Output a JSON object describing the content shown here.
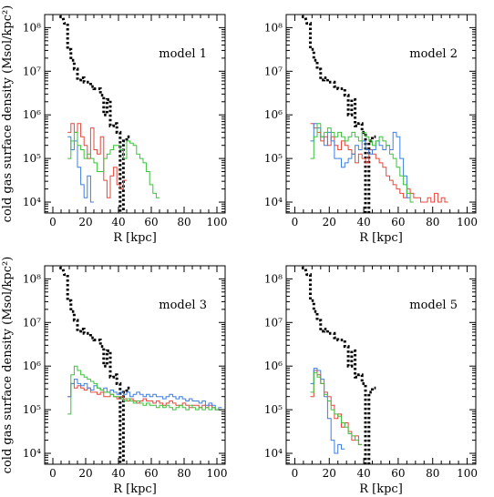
{
  "chart_data": [
    {
      "type": "line",
      "title": "model 1",
      "xlabel": "R [kpc]",
      "ylabel": "cold gas surface density (Msol/kpc²)",
      "xlim": [
        -5,
        105
      ],
      "ylim_log10": [
        3.75,
        8.3
      ],
      "yscale": "log",
      "x_ticks": [
        0,
        20,
        40,
        60,
        80,
        100
      ],
      "y_ticks": [
        "10⁴",
        "10⁵",
        "10⁶",
        "10⁷",
        "10⁸"
      ],
      "grid": false,
      "series": [
        {
          "color": "#000000",
          "style": "dotted",
          "x": [
            5,
            8,
            10,
            12,
            14,
            16,
            18,
            20,
            22,
            24,
            26,
            28,
            30,
            32,
            34,
            36,
            38,
            40,
            42,
            44,
            46
          ],
          "log10y": [
            8.25,
            8.1,
            7.5,
            7.25,
            7.05,
            6.8,
            6.85,
            6.75,
            6.75,
            6.65,
            6.6,
            6.6,
            6.45,
            6.0,
            6.35,
            5.75,
            5.8,
            5.6,
            3.6,
            5.4,
            5.5
          ]
        },
        {
          "color": "#e8453c",
          "style": "solid",
          "x": [
            10,
            12,
            14,
            16,
            18,
            20,
            22,
            24,
            26,
            28,
            30,
            32,
            34,
            36,
            38,
            40,
            42,
            44
          ],
          "log10y": [
            5.6,
            5.8,
            5.6,
            5.8,
            5.5,
            5.3,
            5.0,
            5.7,
            5.2,
            5.1,
            5.5,
            4.5,
            4.1,
            4.6,
            4.8,
            4.4,
            4.3,
            4.5
          ]
        },
        {
          "color": "#3d7fe0",
          "style": "solid",
          "x": [
            10,
            12,
            14,
            16,
            18,
            20,
            22,
            24
          ],
          "log10y": [
            5.5,
            5.2,
            5.4,
            4.8,
            4.4,
            4.1,
            4.6,
            4.0
          ]
        },
        {
          "color": "#3cc23c",
          "style": "solid",
          "x": [
            10,
            12,
            14,
            16,
            18,
            20,
            22,
            24,
            26,
            28,
            30,
            32,
            34,
            36,
            38,
            40,
            42,
            44,
            46,
            48,
            50,
            52,
            54,
            56,
            58,
            60,
            62,
            64
          ],
          "log10y": [
            5.0,
            5.4,
            5.6,
            5.3,
            5.2,
            5.0,
            5.1,
            5.0,
            4.9,
            4.7,
            4.7,
            5.0,
            5.1,
            5.2,
            5.3,
            5.3,
            5.2,
            5.0,
            5.4,
            5.35,
            5.3,
            5.1,
            5.0,
            4.9,
            4.7,
            4.4,
            4.2,
            4.1
          ]
        }
      ]
    },
    {
      "type": "line",
      "title": "model 2",
      "xlabel": "R [kpc]",
      "ylabel": "",
      "xlim": [
        -5,
        105
      ],
      "ylim_log10": [
        3.75,
        8.3
      ],
      "yscale": "log",
      "x_ticks": [
        0,
        20,
        40,
        60,
        80,
        100
      ],
      "y_ticks": [
        "10⁴",
        "10⁵",
        "10⁶",
        "10⁷",
        "10⁸"
      ],
      "grid": false,
      "series": [
        {
          "color": "#000000",
          "style": "dotted",
          "x": [
            5,
            8,
            10,
            12,
            14,
            16,
            18,
            20,
            22,
            24,
            26,
            28,
            30,
            32,
            34,
            36,
            38,
            40,
            42,
            44,
            46
          ],
          "log10y": [
            8.25,
            8.1,
            7.5,
            7.25,
            7.05,
            6.8,
            6.85,
            6.75,
            6.75,
            6.65,
            6.6,
            6.6,
            6.45,
            6.0,
            6.35,
            5.75,
            5.8,
            5.6,
            3.6,
            5.4,
            5.5
          ]
        },
        {
          "color": "#e8453c",
          "style": "solid",
          "x": [
            10,
            12,
            14,
            16,
            18,
            20,
            22,
            24,
            26,
            28,
            30,
            32,
            34,
            36,
            38,
            40,
            42,
            44,
            46,
            48,
            50,
            52,
            54,
            56,
            58,
            60,
            62,
            64,
            66,
            68,
            70,
            72,
            74,
            76,
            78,
            80,
            82,
            84,
            86,
            88
          ],
          "log10y": [
            5.8,
            5.7,
            5.6,
            5.4,
            5.5,
            5.3,
            5.5,
            5.3,
            5.2,
            5.4,
            5.3,
            5.2,
            5.1,
            4.9,
            5.1,
            5.0,
            4.9,
            5.2,
            5.1,
            5.0,
            4.9,
            4.8,
            4.6,
            4.5,
            4.4,
            4.3,
            4.2,
            4.1,
            4.3,
            4.2,
            4.1,
            4.1,
            4.0,
            4.0,
            4.1,
            4.0,
            4.2,
            4.0,
            4.1,
            4.0
          ]
        },
        {
          "color": "#3d7fe0",
          "style": "solid",
          "x": [
            10,
            12,
            14,
            16,
            18,
            20,
            22,
            24,
            26,
            28,
            30,
            32,
            34,
            36,
            38,
            40,
            42,
            44,
            46,
            48,
            50,
            52,
            54,
            56,
            58,
            60,
            62,
            64,
            66
          ],
          "log10y": [
            5.4,
            5.8,
            5.7,
            5.5,
            5.3,
            5.6,
            5.4,
            5.0,
            5.0,
            4.8,
            4.9,
            5.0,
            5.1,
            5.3,
            5.2,
            5.4,
            5.2,
            5.1,
            5.2,
            5.4,
            5.3,
            5.2,
            5.3,
            5.2,
            5.6,
            5.5,
            5.0,
            4.6,
            4.1
          ]
        },
        {
          "color": "#3cc23c",
          "style": "solid",
          "x": [
            10,
            12,
            14,
            16,
            18,
            20,
            22,
            24,
            26,
            28,
            30,
            32,
            34,
            36,
            38,
            40,
            42,
            44,
            46,
            48,
            50,
            52,
            54,
            56,
            58,
            60,
            62,
            64,
            66,
            68
          ],
          "log10y": [
            5.0,
            5.5,
            5.8,
            5.5,
            5.6,
            5.7,
            5.6,
            5.5,
            5.6,
            5.5,
            5.4,
            5.5,
            5.6,
            5.5,
            5.4,
            5.6,
            5.5,
            5.4,
            5.3,
            5.4,
            5.5,
            5.4,
            5.3,
            5.1,
            5.0,
            4.8,
            4.6,
            4.4,
            4.2,
            4.0
          ]
        }
      ]
    },
    {
      "type": "line",
      "title": "model 3",
      "xlabel": "R [kpc]",
      "ylabel": "cold gas surface density (Msol/kpc²)",
      "xlim": [
        -5,
        105
      ],
      "ylim_log10": [
        3.75,
        8.3
      ],
      "yscale": "log",
      "x_ticks": [
        0,
        20,
        40,
        60,
        80,
        100
      ],
      "y_ticks": [
        "10⁴",
        "10⁵",
        "10⁶",
        "10⁷",
        "10⁸"
      ],
      "grid": false,
      "series": [
        {
          "color": "#000000",
          "style": "dotted",
          "x": [
            5,
            8,
            10,
            12,
            14,
            16,
            18,
            20,
            22,
            24,
            26,
            28,
            30,
            32,
            34,
            36,
            38,
            40,
            42,
            44,
            46
          ],
          "log10y": [
            8.25,
            8.1,
            7.5,
            7.25,
            7.05,
            6.8,
            6.85,
            6.75,
            6.75,
            6.65,
            6.6,
            6.6,
            6.45,
            6.0,
            6.35,
            5.75,
            5.8,
            5.6,
            3.6,
            5.4,
            5.5
          ]
        },
        {
          "color": "#e8453c",
          "style": "solid",
          "x": [
            10,
            12,
            14,
            16,
            18,
            20,
            22,
            24,
            26,
            28,
            30,
            32,
            34,
            36,
            38,
            40,
            42,
            44,
            46,
            48,
            50,
            52,
            54,
            56,
            58,
            60,
            62,
            64,
            66,
            68,
            70,
            72,
            74,
            76,
            78,
            80,
            82,
            84,
            86,
            88,
            90,
            92,
            94,
            96,
            98,
            100,
            102
          ],
          "log10y": [
            5.3,
            5.6,
            5.5,
            5.55,
            5.5,
            5.45,
            5.5,
            5.4,
            5.4,
            5.35,
            5.4,
            5.3,
            5.3,
            5.35,
            5.3,
            5.25,
            5.3,
            5.25,
            5.2,
            5.25,
            5.2,
            5.15,
            5.2,
            5.25,
            5.2,
            5.2,
            5.15,
            5.2,
            5.15,
            5.1,
            5.15,
            5.2,
            5.15,
            5.1,
            5.1,
            5.15,
            5.1,
            5.05,
            5.1,
            5.1,
            5.05,
            5.1,
            5.05,
            5.1,
            5.05,
            5.0,
            5.0
          ]
        },
        {
          "color": "#3d7fe0",
          "style": "solid",
          "x": [
            10,
            12,
            14,
            16,
            18,
            20,
            22,
            24,
            26,
            28,
            30,
            32,
            34,
            36,
            38,
            40,
            42,
            44,
            46,
            48,
            50,
            52,
            54,
            56,
            58,
            60,
            62,
            64,
            66,
            68,
            70,
            72,
            74,
            76,
            78,
            80,
            82,
            84,
            86,
            88,
            90,
            92,
            94,
            96,
            98,
            100,
            102
          ],
          "log10y": [
            5.3,
            5.6,
            5.7,
            5.6,
            5.55,
            5.6,
            5.5,
            5.45,
            5.55,
            5.5,
            5.45,
            5.5,
            5.4,
            5.45,
            5.4,
            5.35,
            5.4,
            5.35,
            5.4,
            5.3,
            5.35,
            5.4,
            5.35,
            5.3,
            5.35,
            5.3,
            5.35,
            5.3,
            5.3,
            5.25,
            5.3,
            5.35,
            5.3,
            5.25,
            5.3,
            5.25,
            5.2,
            5.25,
            5.2,
            5.2,
            5.15,
            5.2,
            5.1,
            5.15,
            5.1,
            5.0,
            5.05
          ]
        },
        {
          "color": "#3cc23c",
          "style": "solid",
          "x": [
            10,
            12,
            14,
            16,
            18,
            20,
            22,
            24,
            26,
            28,
            30,
            32,
            34,
            36,
            38,
            40,
            42,
            44,
            46,
            48,
            50,
            52,
            54,
            56,
            58,
            60,
            62,
            64,
            66,
            68,
            70,
            72,
            74,
            76,
            78,
            80,
            82,
            84,
            86,
            88,
            90,
            92,
            94,
            96,
            98,
            100,
            102
          ],
          "log10y": [
            4.9,
            5.8,
            6.0,
            5.9,
            5.8,
            5.75,
            5.7,
            5.65,
            5.6,
            5.5,
            5.45,
            5.4,
            5.4,
            5.35,
            5.3,
            5.3,
            5.25,
            5.2,
            5.25,
            5.2,
            5.15,
            5.2,
            5.15,
            5.1,
            5.15,
            5.1,
            5.1,
            5.05,
            5.1,
            5.05,
            5.1,
            5.05,
            5.0,
            5.05,
            5.1,
            5.05,
            5.0,
            5.1,
            5.05,
            5.0,
            5.05,
            5.0,
            5.05,
            5.0,
            5.05,
            5.0,
            5.0
          ]
        }
      ]
    },
    {
      "type": "line",
      "title": "model 5",
      "xlabel": "R [kpc]",
      "ylabel": "",
      "xlim": [
        -5,
        105
      ],
      "ylim_log10": [
        3.75,
        8.3
      ],
      "yscale": "log",
      "x_ticks": [
        0,
        20,
        40,
        60,
        80,
        100
      ],
      "y_ticks": [
        "10⁴",
        "10⁵",
        "10⁶",
        "10⁷",
        "10⁸"
      ],
      "grid": false,
      "series": [
        {
          "color": "#000000",
          "style": "dotted",
          "x": [
            5,
            8,
            10,
            12,
            14,
            16,
            18,
            20,
            22,
            24,
            26,
            28,
            30,
            32,
            34,
            36,
            38,
            40,
            42,
            44,
            46
          ],
          "log10y": [
            8.25,
            8.1,
            7.5,
            7.25,
            7.05,
            6.8,
            6.85,
            6.75,
            6.75,
            6.65,
            6.6,
            6.6,
            6.45,
            6.0,
            6.35,
            5.75,
            5.8,
            5.6,
            3.6,
            5.4,
            5.5
          ]
        },
        {
          "color": "#e8453c",
          "style": "solid",
          "x": [
            10,
            12,
            14,
            16,
            18,
            20,
            22,
            24,
            26,
            28,
            30,
            32,
            34,
            36,
            38
          ],
          "log10y": [
            5.3,
            5.9,
            5.8,
            5.6,
            5.4,
            5.3,
            5.1,
            4.8,
            4.9,
            4.6,
            4.7,
            4.5,
            4.3,
            4.4,
            4.2
          ]
        },
        {
          "color": "#3d7fe0",
          "style": "solid",
          "x": [
            10,
            12,
            14,
            16,
            18,
            20,
            22,
            24,
            26,
            28
          ],
          "log10y": [
            5.6,
            5.95,
            5.9,
            5.7,
            5.3,
            4.8,
            4.3,
            4.0,
            4.2,
            4.1
          ]
        },
        {
          "color": "#3cc23c",
          "style": "solid",
          "x": [
            10,
            12,
            14,
            16,
            18,
            20,
            22,
            24,
            26,
            28,
            30,
            32,
            34,
            36,
            38
          ],
          "log10y": [
            5.4,
            5.85,
            5.75,
            5.6,
            5.35,
            5.2,
            5.0,
            4.9,
            4.85,
            4.7,
            4.6,
            4.45,
            4.4,
            4.3,
            4.2
          ]
        }
      ]
    }
  ]
}
